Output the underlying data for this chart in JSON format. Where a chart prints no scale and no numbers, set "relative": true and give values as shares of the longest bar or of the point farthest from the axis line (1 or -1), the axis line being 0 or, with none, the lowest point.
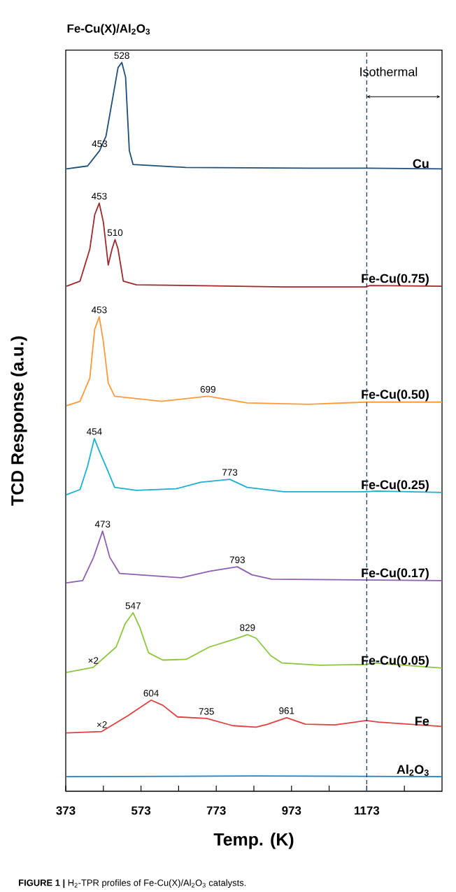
{
  "chart_data": {
    "type": "line",
    "title": "Fe-Cu(X)/Al$_{2}$O$_{3}$",
    "xlabel": "Temp. (K)",
    "ylabel": "TCD Response (a.u.)",
    "relative": true,
    "tick_labels": "x",
    "xlim": [
      373,
      1373
    ],
    "xticks": [
      373,
      {
        "value": 473,
        "label": null
      },
      573,
      {
        "value": 673,
        "label": null
      },
      773,
      {
        "value": 873,
        "label": null
      },
      973,
      {
        "value": 1073,
        "label": null
      },
      1173,
      {
        "value": 1273,
        "label": null
      }
    ],
    "series": [
      {
        "name": "Cu",
        "color": "#1f4e79",
        "x": [
          375,
          431,
          463,
          480,
          496,
          512,
          522,
          532,
          542,
          552,
          692,
          1018,
          1172,
          1373
        ],
        "values": [
          0.854,
          0.858,
          0.879,
          0.899,
          0.946,
          0.993,
          1.0,
          0.98,
          0.879,
          0.86,
          0.856,
          0.855,
          0.855,
          0.854
        ]
      },
      {
        "name": "Fe-Cu(0.75)",
        "color": "#a0282c",
        "x": [
          375,
          411,
          437,
          450,
          462,
          473,
          486,
          496,
          504,
          512,
          526,
          561,
          705,
          953,
          1169,
          1182,
          1373
        ],
        "values": [
          0.693,
          0.7,
          0.744,
          0.791,
          0.807,
          0.781,
          0.722,
          0.744,
          0.757,
          0.744,
          0.7,
          0.695,
          0.694,
          0.692,
          0.692,
          0.694,
          0.693
        ]
      },
      {
        "name": "Fe-Cu(0.50)",
        "color": "#ff9a3c",
        "x": [
          375,
          411,
          437,
          450,
          462,
          473,
          486,
          503,
          627,
          751,
          855,
          1018,
          1170,
          1373
        ],
        "values": [
          0.529,
          0.535,
          0.567,
          0.634,
          0.651,
          0.617,
          0.56,
          0.542,
          0.535,
          0.542,
          0.533,
          0.531,
          0.534,
          0.534
        ]
      },
      {
        "name": "Fe-Cu(0.25)",
        "color": "#1bb0cf",
        "x": [
          375,
          411,
          431,
          449,
          463,
          483,
          503,
          561,
          666,
          731,
          809,
          855,
          953,
          1172,
          1198,
          1373
        ],
        "values": [
          0.407,
          0.414,
          0.446,
          0.484,
          0.466,
          0.442,
          0.417,
          0.413,
          0.415,
          0.424,
          0.428,
          0.417,
          0.411,
          0.411,
          0.412,
          0.41
        ]
      },
      {
        "name": "Fe-Cu(0.17)",
        "color": "#8e5fb0",
        "x": [
          375,
          418,
          447,
          471,
          490,
          516,
          679,
          757,
          829,
          868,
          920,
          1373
        ],
        "values": [
          0.286,
          0.289,
          0.321,
          0.357,
          0.321,
          0.299,
          0.293,
          0.302,
          0.308,
          0.297,
          0.291,
          0.289
        ]
      },
      {
        "name": "Fe-Cu(0.05)",
        "color": "#8cc63f",
        "x": [
          375,
          446,
          507,
          531,
          552,
          569,
          593,
          631,
          693,
          755,
          817,
          856,
          879,
          918,
          948,
          1049,
          1171,
          1192,
          1373
        ],
        "values": [
          0.163,
          0.17,
          0.198,
          0.23,
          0.245,
          0.226,
          0.19,
          0.18,
          0.181,
          0.198,
          0.208,
          0.215,
          0.21,
          0.186,
          0.176,
          0.173,
          0.174,
          0.176,
          0.169
        ]
      },
      {
        "name": "Fe",
        "color": "#e04040",
        "x": [
          375,
          469,
          539,
          600,
          631,
          670,
          747,
          817,
          879,
          910,
          960,
          1010,
          1088,
          1171,
          1204,
          1373
        ],
        "values": [
          0.08,
          0.082,
          0.104,
          0.125,
          0.118,
          0.102,
          0.1,
          0.09,
          0.088,
          0.092,
          0.101,
          0.092,
          0.091,
          0.097,
          0.095,
          0.089
        ]
      },
      {
        "name": "Al$_{2}$O$_{3}$",
        "color": "#1f7fc8",
        "x": [
          375,
          873,
          1373
        ],
        "values": [
          0.02,
          0.021,
          0.02
        ]
      }
    ],
    "ref_lines": [
      {
        "axis": "x",
        "value": 1173,
        "label": "Isothermal",
        "color": "#1f3a6e",
        "line_style": "dashed"
      }
    ],
    "annotations": [
      {
        "text": "528",
        "x": 522,
        "y": 1.0
      },
      {
        "text": "453",
        "x": 463,
        "y": 0.879
      },
      {
        "text": "453",
        "x": 462,
        "y": 0.807
      },
      {
        "text": "510",
        "x": 504,
        "y": 0.757
      },
      {
        "text": "453",
        "x": 462,
        "y": 0.651
      },
      {
        "text": "699",
        "x": 751,
        "y": 0.542
      },
      {
        "text": "454",
        "x": 449,
        "y": 0.484
      },
      {
        "text": "773",
        "x": 809,
        "y": 0.428
      },
      {
        "text": "473",
        "x": 471,
        "y": 0.357
      },
      {
        "text": "793",
        "x": 829,
        "y": 0.308
      },
      {
        "text": "547",
        "x": 552,
        "y": 0.245
      },
      {
        "text": "829",
        "x": 856,
        "y": 0.215
      },
      {
        "text": "×2",
        "x": 446,
        "y": 0.17
      },
      {
        "text": "604",
        "x": 600,
        "y": 0.125
      },
      {
        "text": "735",
        "x": 747,
        "y": 0.1
      },
      {
        "text": "961",
        "x": 960,
        "y": 0.101
      },
      {
        "text": "×2",
        "x": 469,
        "y": 0.082
      },
      "**FIGURE 1 |** H$_{2}$-TPR profiles of Fe-Cu(X)/Al$_{2}$O$_{3}$ catalysts."
    ]
  }
}
